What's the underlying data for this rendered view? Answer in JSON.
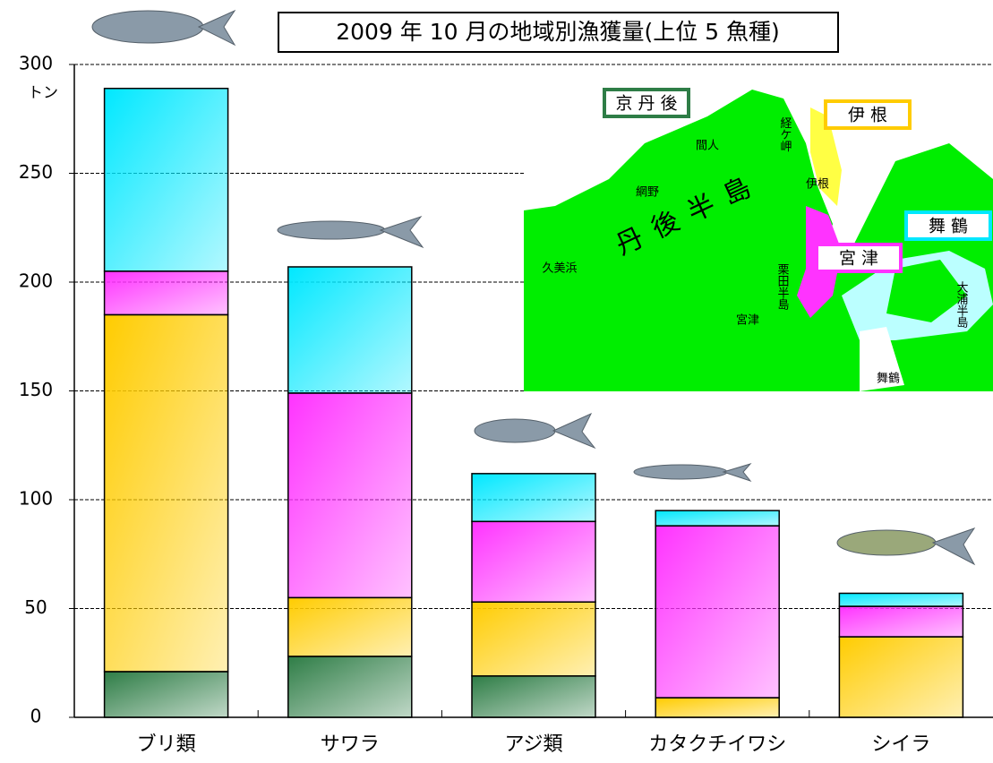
{
  "chart_data": {
    "type": "stacked_bar",
    "title": "2009 年 10 月の地域別漁獲量(上位 5 魚種)",
    "y_unit": "トン",
    "categories": [
      "ブリ類",
      "サワラ",
      "アジ類",
      "カタクチイワシ",
      "シイラ"
    ],
    "series": [
      {
        "name": "京 丹 後",
        "color": "#2e7d46",
        "values": [
          21,
          28,
          19,
          0,
          0
        ]
      },
      {
        "name": "伊 根",
        "color": "#ffcc00",
        "values": [
          164,
          27,
          34,
          9,
          37
        ]
      },
      {
        "name": "宮 津",
        "color": "#ff33ff",
        "values": [
          20,
          94,
          37,
          79,
          14
        ]
      },
      {
        "name": "舞 鶴",
        "color": "#00e8ff",
        "values": [
          84,
          58,
          22,
          7,
          6
        ]
      }
    ],
    "ylim": [
      0,
      300
    ],
    "yticks": [
      0,
      50,
      100,
      150,
      200,
      250,
      300
    ],
    "grid": true,
    "map_labels": [
      "丹後半島",
      "間人",
      "網野",
      "経ケ岬",
      "伊根",
      "久美浜",
      "栗田半島",
      "宮津",
      "大浦半島",
      "舞鶴"
    ]
  }
}
